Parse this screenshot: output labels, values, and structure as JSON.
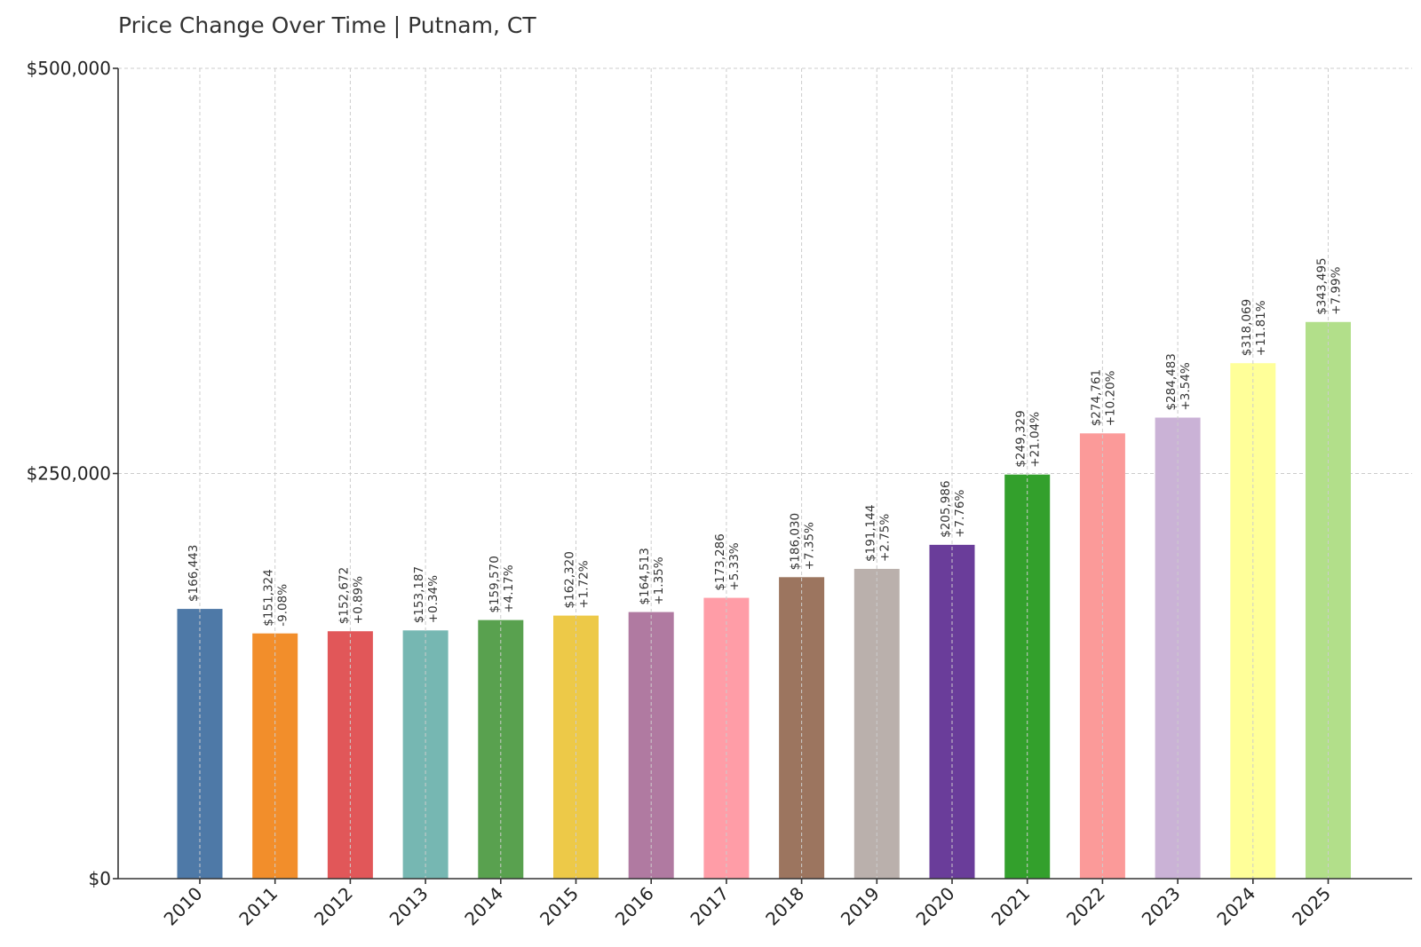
{
  "chart_data": {
    "type": "bar",
    "title": "Price Change Over Time | Putnam, CT",
    "xlabel": "",
    "ylabel": "",
    "ylim": [
      0,
      500000
    ],
    "y_ticks": [
      {
        "value": 0,
        "label": "$0"
      },
      {
        "value": 250000,
        "label": "$250,000"
      },
      {
        "value": 500000,
        "label": "$500,000"
      }
    ],
    "grid": true,
    "categories": [
      "2010",
      "2011",
      "2012",
      "2013",
      "2014",
      "2015",
      "2016",
      "2017",
      "2018",
      "2019",
      "2020",
      "2021",
      "2022",
      "2023",
      "2024",
      "2025"
    ],
    "values": [
      166443,
      151324,
      152672,
      153187,
      159570,
      162320,
      164513,
      173286,
      186030,
      191144,
      205986,
      249329,
      274761,
      284483,
      318069,
      343495
    ],
    "value_labels": [
      "$166,443",
      "$151,324",
      "$152,672",
      "$153,187",
      "$159,570",
      "$162,320",
      "$164,513",
      "$173,286",
      "$186,030",
      "$191,144",
      "$205,986",
      "$249,329",
      "$274,761",
      "$284,483",
      "$318,069",
      "$343,495"
    ],
    "change_labels": [
      "",
      "-9.08%",
      "+0.89%",
      "+0.34%",
      "+4.17%",
      "+1.72%",
      "+1.35%",
      "+5.33%",
      "+7.35%",
      "+2.75%",
      "+7.76%",
      "+21.04%",
      "+10.20%",
      "+3.54%",
      "+11.81%",
      "+7.99%"
    ],
    "colors": [
      "#4e79a7",
      "#f28e2b",
      "#e15759",
      "#76b7b2",
      "#59a14f",
      "#edc948",
      "#b07aa1",
      "#ff9da7",
      "#9c755f",
      "#bab0ac",
      "#6a3d9a",
      "#33a02c",
      "#fb9a99",
      "#cab2d6",
      "#ffff99",
      "#b2df8a"
    ]
  }
}
